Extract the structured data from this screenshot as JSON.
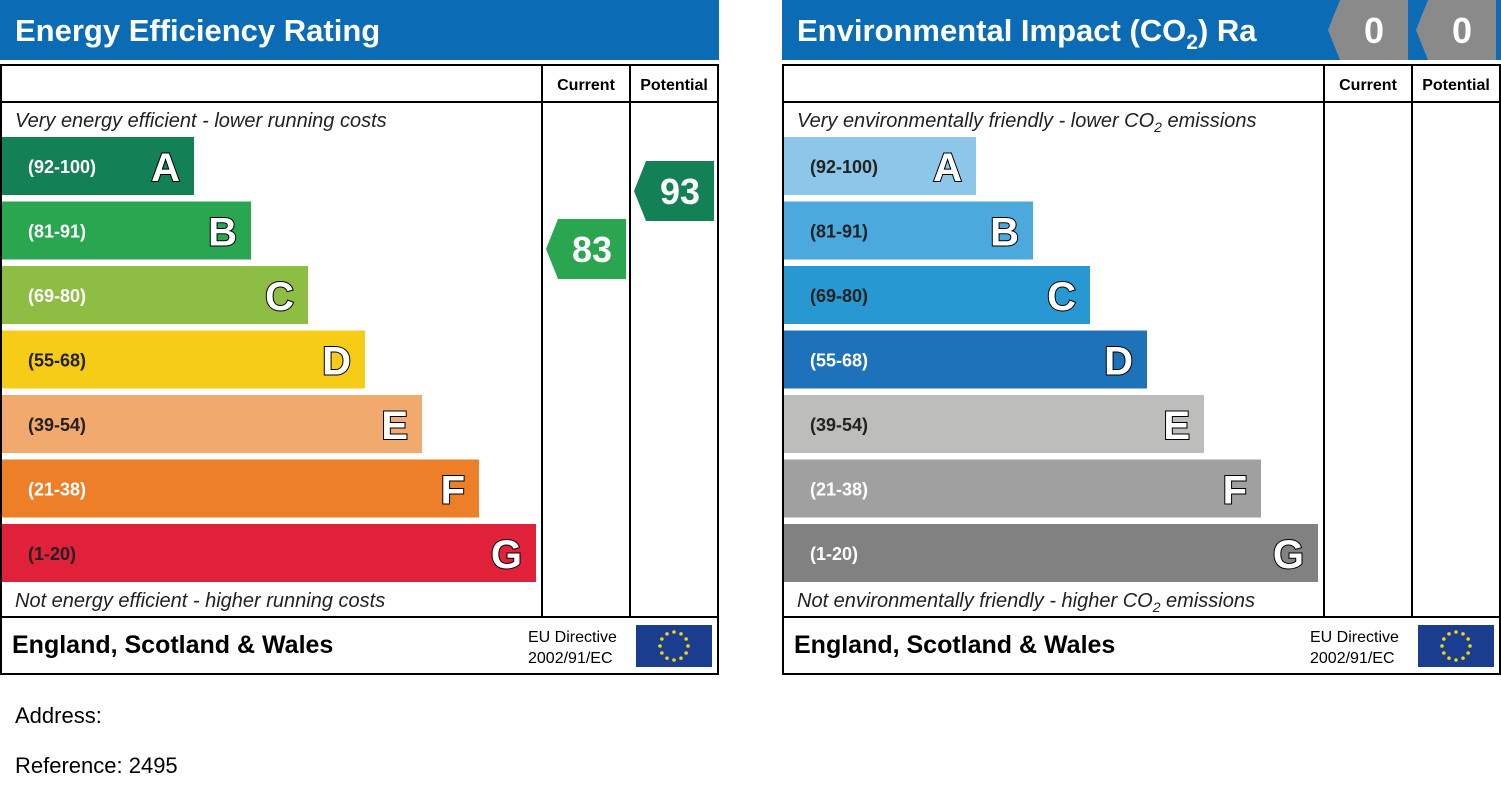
{
  "chart_data": [
    {
      "type": "bar",
      "title": "Energy Efficiency Rating",
      "columns": [
        "Current",
        "Potential"
      ],
      "top_caption": "Very energy efficient - lower running costs",
      "bottom_caption": "Not energy efficient - higher running costs",
      "bands": [
        {
          "range": "(92-100)",
          "letter": "A",
          "color": "#138055"
        },
        {
          "range": "(81-91)",
          "letter": "B",
          "color": "#2aa651"
        },
        {
          "range": "(69-80)",
          "letter": "C",
          "color": "#8dbe43"
        },
        {
          "range": "(55-68)",
          "letter": "D",
          "color": "#f6cc17"
        },
        {
          "range": "(39-54)",
          "letter": "E",
          "color": "#f2a96d"
        },
        {
          "range": "(21-38)",
          "letter": "F",
          "color": "#ed7f29"
        },
        {
          "range": "(1-20)",
          "letter": "G",
          "color": "#e1203a"
        }
      ],
      "current": {
        "value": 83,
        "band": "B",
        "color": "#2aa651"
      },
      "potential": {
        "value": 93,
        "band": "A",
        "color": "#138055"
      },
      "region": "England, Scotland & Wales",
      "directive_line1": "EU Directive",
      "directive_line2": "2002/91/EC"
    },
    {
      "type": "bar",
      "title": "Environmental Impact (CO",
      "title_sub": "2",
      "title_tail": ") Ra",
      "columns": [
        "Current",
        "Potential"
      ],
      "top_caption": "Very environmentally friendly - lower CO",
      "top_caption_sub": "2",
      "top_caption_tail": " emissions",
      "bottom_caption": "Not environmentally friendly - higher CO",
      "bottom_caption_sub": "2",
      "bottom_caption_tail": " emissions",
      "bands": [
        {
          "range": "(92-100)",
          "letter": "A",
          "color": "#8cc6e8"
        },
        {
          "range": "(81-91)",
          "letter": "B",
          "color": "#4ba9de"
        },
        {
          "range": "(69-80)",
          "letter": "C",
          "color": "#2898d2"
        },
        {
          "range": "(55-68)",
          "letter": "D",
          "color": "#1d72b9"
        },
        {
          "range": "(39-54)",
          "letter": "E",
          "color": "#bdbdbb"
        },
        {
          "range": "(21-38)",
          "letter": "F",
          "color": "#a0a0a0"
        },
        {
          "range": "(1-20)",
          "letter": "G",
          "color": "#818181"
        }
      ],
      "current": {
        "value": 0,
        "color": "#8a8a8a"
      },
      "potential": {
        "value": 0,
        "color": "#8a8a8a"
      },
      "region": "England, Scotland & Wales",
      "directive_line1": "EU Directive",
      "directive_line2": "2002/91/EC"
    }
  ],
  "colors": {
    "title_bar": "#0b6cb5",
    "eu_flag": "#1a3d8f",
    "eu_star": "#f6d20f"
  },
  "address_label": "Address:",
  "reference": "Reference: 2495"
}
